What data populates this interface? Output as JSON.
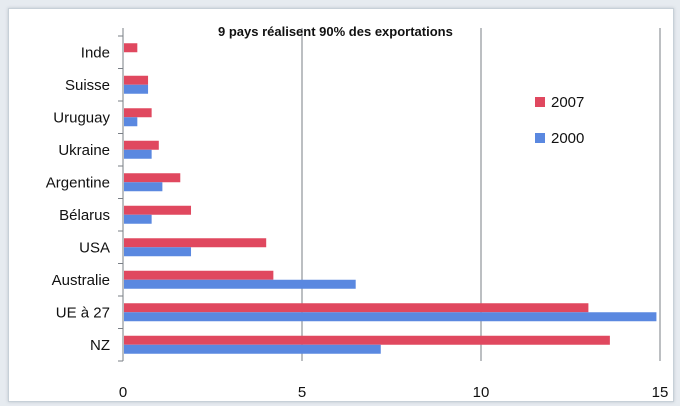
{
  "chart_data": {
    "type": "bar",
    "orientation": "horizontal",
    "title": "9 pays réalisent 90% des exportations",
    "categories": [
      "Inde",
      "Suisse",
      "Uruguay",
      "Ukraine",
      "Argentine",
      "Bélarus",
      "USA",
      "Australie",
      "UE à 27",
      "NZ"
    ],
    "series": [
      {
        "name": "2007",
        "color": "#e0485f",
        "values": [
          0.4,
          0.7,
          0.8,
          1.0,
          1.6,
          1.9,
          4.0,
          4.2,
          13.0,
          13.6
        ]
      },
      {
        "name": "2000",
        "color": "#5a88e0",
        "values": [
          null,
          0.7,
          0.4,
          0.8,
          1.1,
          0.8,
          1.9,
          6.5,
          14.9,
          7.2
        ]
      }
    ],
    "xlim": [
      0,
      15
    ],
    "xticks": [
      "0",
      "5",
      "10",
      "15"
    ],
    "grid": true,
    "legend_position": "right"
  }
}
